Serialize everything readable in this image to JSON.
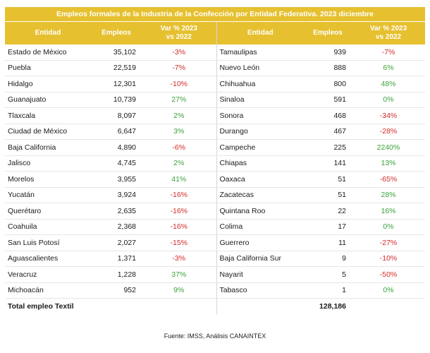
{
  "title": "Empleos formales de la Industria de la Confección por Entidad Federativa. 2023 diciembre",
  "headers": {
    "entidad": "Entidad",
    "empleos": "Empleos",
    "var_line1": "Var % 2023",
    "var_line2": "vs 2022"
  },
  "colors": {
    "header_bg": "#e6c02f",
    "positive": "#3aa33a",
    "negative": "#d42a2a"
  },
  "rows": [
    {
      "left": {
        "entidad": "Estado de México",
        "empleos": "35,102",
        "var": "-3%"
      },
      "right": {
        "entidad": "Tamaulipas",
        "empleos": "939",
        "var": "-7%"
      }
    },
    {
      "left": {
        "entidad": "Puebla",
        "empleos": "22,519",
        "var": "-7%"
      },
      "right": {
        "entidad": "Nuevo León",
        "empleos": "888",
        "var": "6%"
      }
    },
    {
      "left": {
        "entidad": "Hidalgo",
        "empleos": "12,301",
        "var": "-10%"
      },
      "right": {
        "entidad": "Chihuahua",
        "empleos": "800",
        "var": "48%"
      }
    },
    {
      "left": {
        "entidad": "Guanajuato",
        "empleos": "10,739",
        "var": "27%"
      },
      "right": {
        "entidad": "Sinaloa",
        "empleos": "591",
        "var": "0%"
      }
    },
    {
      "left": {
        "entidad": "Tlaxcala",
        "empleos": "8,097",
        "var": "2%"
      },
      "right": {
        "entidad": "Sonora",
        "empleos": "468",
        "var": "-34%"
      }
    },
    {
      "left": {
        "entidad": "Ciudad de México",
        "empleos": "6,647",
        "var": "3%"
      },
      "right": {
        "entidad": "Durango",
        "empleos": "467",
        "var": "-28%"
      }
    },
    {
      "left": {
        "entidad": "Baja California",
        "empleos": "4,890",
        "var": "-6%"
      },
      "right": {
        "entidad": "Campeche",
        "empleos": "225",
        "var": "2240%"
      }
    },
    {
      "left": {
        "entidad": "Jalisco",
        "empleos": "4,745",
        "var": "2%"
      },
      "right": {
        "entidad": "Chiapas",
        "empleos": "141",
        "var": "13%"
      }
    },
    {
      "left": {
        "entidad": "Morelos",
        "empleos": "3,955",
        "var": "41%"
      },
      "right": {
        "entidad": "Oaxaca",
        "empleos": "51",
        "var": "-65%"
      }
    },
    {
      "left": {
        "entidad": "Yucatán",
        "empleos": "3,924",
        "var": "-16%"
      },
      "right": {
        "entidad": "Zacatecas",
        "empleos": "51",
        "var": "28%"
      }
    },
    {
      "left": {
        "entidad": "Querétaro",
        "empleos": "2,635",
        "var": "-16%"
      },
      "right": {
        "entidad": "Quintana Roo",
        "empleos": "22",
        "var": "16%"
      }
    },
    {
      "left": {
        "entidad": "Coahuila",
        "empleos": "2,368",
        "var": "-16%"
      },
      "right": {
        "entidad": "Colima",
        "empleos": "17",
        "var": "0%"
      }
    },
    {
      "left": {
        "entidad": "San Luis Potosí",
        "empleos": "2,027",
        "var": "-15%"
      },
      "right": {
        "entidad": "Guerrero",
        "empleos": "11",
        "var": "-27%"
      }
    },
    {
      "left": {
        "entidad": "Aguascalientes",
        "empleos": "1,371",
        "var": "-3%"
      },
      "right": {
        "entidad": "Baja California Sur",
        "empleos": "9",
        "var": "-10%"
      }
    },
    {
      "left": {
        "entidad": "Veracruz",
        "empleos": "1,228",
        "var": "37%"
      },
      "right": {
        "entidad": "Nayarit",
        "empleos": "5",
        "var": "-50%"
      }
    },
    {
      "left": {
        "entidad": "Michoacán",
        "empleos": "952",
        "var": "9%"
      },
      "right": {
        "entidad": "Tabasco",
        "empleos": "1",
        "var": "0%"
      }
    }
  ],
  "total": {
    "label": "Total empleo Textil",
    "value": "128,186"
  },
  "source": "Fuente: IMSS, Análisis CANAINTEX"
}
